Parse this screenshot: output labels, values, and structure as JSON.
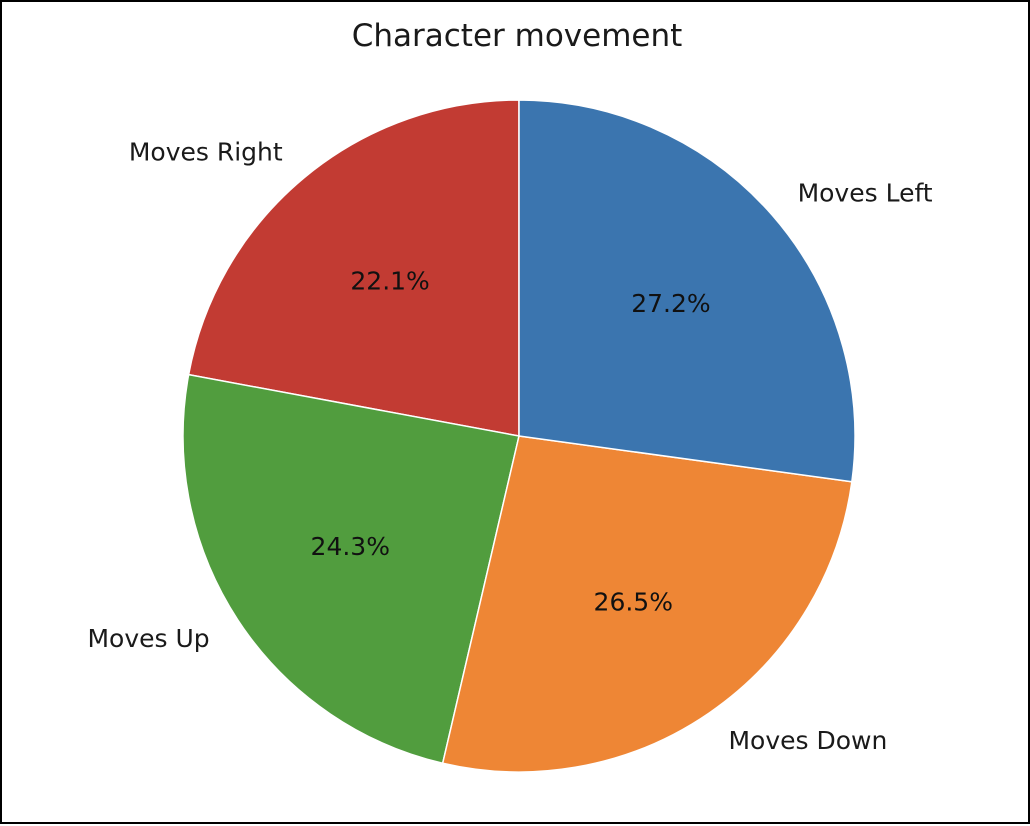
{
  "chart_data": {
    "type": "pie",
    "title": "Character movement",
    "start_angle_deg": 90,
    "direction": "counterclockwise",
    "slices": [
      {
        "label": "Moves Right",
        "value": 22.1,
        "pct_label": "22.1%",
        "color": "#C23B33"
      },
      {
        "label": "Moves Up",
        "value": 24.3,
        "pct_label": "24.3%",
        "color": "#519D3E"
      },
      {
        "label": "Moves Down",
        "value": 26.5,
        "pct_label": "26.5%",
        "color": "#EE8635"
      },
      {
        "label": "Moves Left",
        "value": 27.2,
        "pct_label": "27.2%",
        "color": "#3B75AF"
      }
    ]
  }
}
